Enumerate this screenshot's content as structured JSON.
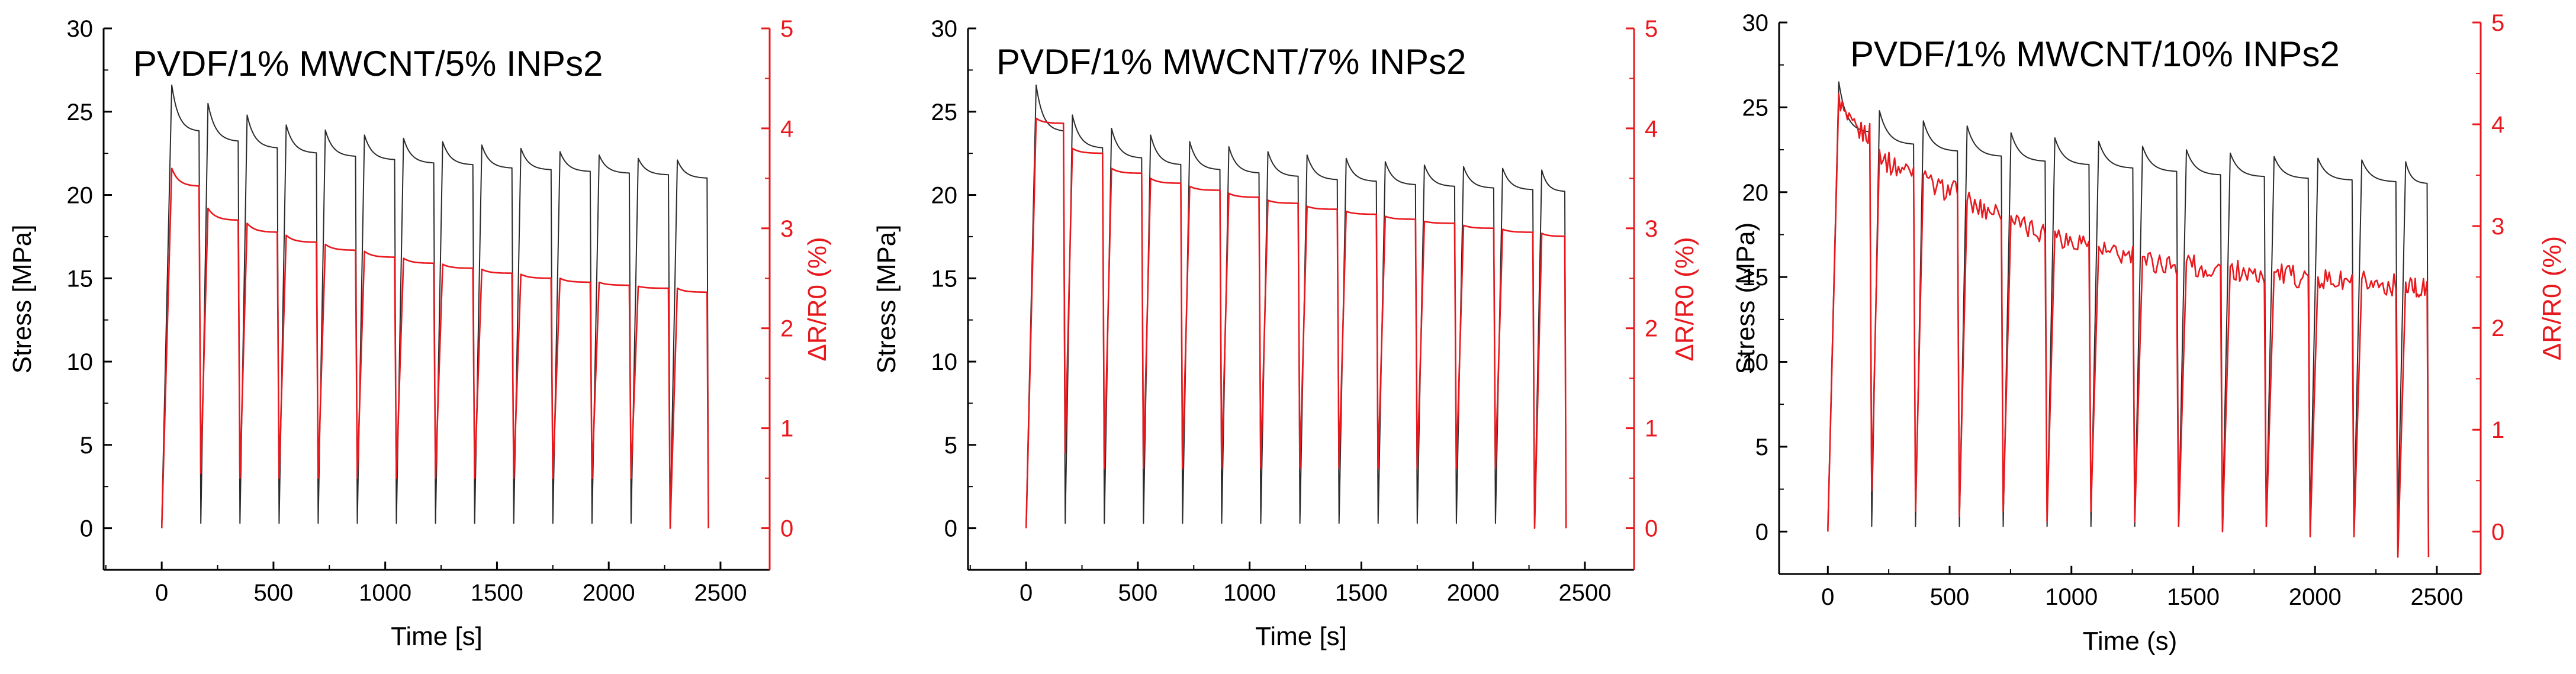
{
  "colors": {
    "stress": "#2b2b2b",
    "resistance": "#e8191e",
    "axis": "#000000"
  },
  "chart_data": [
    {
      "type": "line",
      "title": "PVDF/1% MWCNT/5% INPs2",
      "xlabel": "Time [s]",
      "ylabel": "Stress [MPa]",
      "y2label": "ΔR/R0 (%)",
      "xlim": [
        -260,
        2720
      ],
      "ylim": [
        -2.5,
        30
      ],
      "y2lim": [
        -0.417,
        5
      ],
      "xticks": [
        0,
        500,
        1000,
        1500,
        2000,
        2500
      ],
      "yticks": [
        0,
        5,
        10,
        15,
        20,
        25,
        30
      ],
      "y2ticks": [
        0,
        1,
        2,
        3,
        4,
        5
      ],
      "cycles": {
        "count": 14,
        "start": 0,
        "period": 175,
        "last_end": 2440
      },
      "series": [
        {
          "name": "Stress",
          "axis": "left",
          "color_key": "stress",
          "peaks": [
            26.6,
            25.5,
            24.8,
            24.2,
            23.9,
            23.6,
            23.4,
            23.2,
            23.0,
            22.8,
            22.6,
            22.4,
            22.2,
            22.1
          ],
          "end_values": [
            23.8,
            23.2,
            22.8,
            22.5,
            22.3,
            22.1,
            21.9,
            21.8,
            21.6,
            21.5,
            21.4,
            21.3,
            21.2,
            21.0
          ],
          "minima": [
            0.3,
            0.3,
            0.3,
            0.3,
            0.3,
            0.3,
            0.3,
            0.3,
            0.3,
            0.3,
            0.3,
            0.3,
            0.3,
            0.3
          ]
        },
        {
          "name": "ΔR/R0",
          "axis": "right",
          "color_key": "resistance",
          "peaks": [
            3.6,
            3.2,
            3.05,
            2.93,
            2.84,
            2.77,
            2.7,
            2.64,
            2.59,
            2.54,
            2.5,
            2.46,
            2.42,
            2.4
          ],
          "end_values": [
            3.42,
            3.08,
            2.96,
            2.86,
            2.78,
            2.71,
            2.65,
            2.6,
            2.55,
            2.5,
            2.46,
            2.43,
            2.4,
            2.36
          ],
          "minima": [
            0.0,
            0.55,
            0.5,
            0.5,
            0.5,
            0.5,
            0.5,
            0.5,
            0.5,
            0.5,
            0.5,
            0.5,
            0.5,
            0.0
          ]
        }
      ]
    },
    {
      "type": "line",
      "title": "PVDF/1% MWCNT/7% INPs2",
      "xlabel": "Time [s]",
      "ylabel": "Stress [MPa]",
      "y2label": "ΔR/R0 (%)",
      "xlim": [
        -260,
        2720
      ],
      "ylim": [
        -2.5,
        30
      ],
      "y2lim": [
        -0.417,
        5
      ],
      "xticks": [
        0,
        500,
        1000,
        1500,
        2000,
        2500
      ],
      "yticks": [
        0,
        5,
        10,
        15,
        20,
        25,
        30
      ],
      "y2ticks": [
        0,
        1,
        2,
        3,
        4,
        5
      ],
      "cycles": {
        "count": 14,
        "start": 0,
        "period": 175,
        "last_end": 2410
      },
      "series": [
        {
          "name": "Stress",
          "axis": "left",
          "color_key": "stress",
          "peaks": [
            26.6,
            24.8,
            24.0,
            23.6,
            23.2,
            22.9,
            22.6,
            22.4,
            22.2,
            22.0,
            21.8,
            21.7,
            21.6,
            21.5
          ],
          "end_values": [
            23.8,
            22.8,
            22.2,
            21.8,
            21.5,
            21.3,
            21.1,
            20.9,
            20.8,
            20.6,
            20.5,
            20.4,
            20.3,
            20.2
          ],
          "minima": [
            0.3,
            0.3,
            0.3,
            0.3,
            0.3,
            0.3,
            0.3,
            0.3,
            0.3,
            0.3,
            0.3,
            0.3,
            0.3,
            0.3
          ]
        },
        {
          "name": "ΔR/R0",
          "axis": "right",
          "color_key": "resistance",
          "peaks": [
            4.1,
            3.8,
            3.6,
            3.5,
            3.42,
            3.35,
            3.28,
            3.22,
            3.17,
            3.12,
            3.07,
            3.03,
            2.99,
            2.95
          ],
          "end_values": [
            4.05,
            3.75,
            3.55,
            3.45,
            3.38,
            3.31,
            3.25,
            3.19,
            3.14,
            3.09,
            3.05,
            3.0,
            2.96,
            2.92
          ],
          "minima": [
            0.0,
            0.75,
            0.6,
            0.6,
            0.6,
            0.6,
            0.6,
            0.6,
            0.6,
            0.6,
            0.6,
            0.6,
            0.6,
            0.0
          ]
        }
      ]
    },
    {
      "type": "line",
      "title": "PVDF/1% MWCNT/10% INPs2",
      "xlabel": "Time (s)",
      "ylabel": "Stress (MPa)",
      "y2label": "ΔR/R0 (%)",
      "xlim": [
        -200,
        2680
      ],
      "ylim": [
        -2.5,
        30
      ],
      "y2lim": [
        -0.417,
        5
      ],
      "xticks": [
        0,
        500,
        1000,
        1500,
        2000,
        2500
      ],
      "yticks": [
        0,
        5,
        10,
        15,
        20,
        25,
        30
      ],
      "y2ticks": [
        0,
        1,
        2,
        3,
        4,
        5
      ],
      "cycles": {
        "count": 14,
        "start": 0,
        "period": 180,
        "last_end": 2460
      },
      "series": [
        {
          "name": "Stress",
          "axis": "left",
          "color_key": "stress",
          "peaks": [
            26.5,
            24.8,
            24.2,
            23.9,
            23.5,
            23.2,
            23.0,
            22.7,
            22.5,
            22.3,
            22.1,
            22.0,
            21.9,
            21.8
          ],
          "end_values": [
            23.5,
            22.8,
            22.4,
            22.1,
            21.8,
            21.6,
            21.4,
            21.2,
            21.0,
            20.9,
            20.8,
            20.7,
            20.6,
            20.5
          ],
          "minima": [
            0.3,
            0.3,
            0.3,
            0.3,
            0.3,
            0.3,
            0.3,
            0.3,
            0.3,
            0.3,
            0.3,
            0.3,
            0.3,
            0.3
          ]
        },
        {
          "name": "ΔR/R0",
          "axis": "right",
          "color_key": "resistance",
          "peaks": [
            4.3,
            3.75,
            3.5,
            3.25,
            3.1,
            2.95,
            2.8,
            2.7,
            2.65,
            2.6,
            2.55,
            2.5,
            2.48,
            2.45
          ],
          "end_values": [
            3.9,
            3.55,
            3.35,
            3.15,
            2.95,
            2.85,
            2.7,
            2.62,
            2.58,
            2.52,
            2.5,
            2.45,
            2.42,
            2.38
          ],
          "minima": [
            0.0,
            0.4,
            0.2,
            0.15,
            0.2,
            0.1,
            0.2,
            0.1,
            0.05,
            0.0,
            0.05,
            -0.05,
            -0.05,
            -0.25
          ]
        }
      ]
    }
  ]
}
